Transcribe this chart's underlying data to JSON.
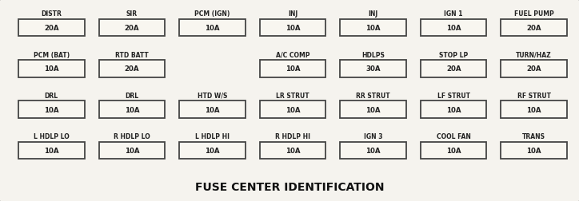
{
  "title": "FUSE CENTER IDENTIFICATION",
  "outer_bg": "#c8c4b8",
  "inner_bg": "#f5f3ee",
  "box_fill": "#f8f6f0",
  "box_edge": "#444444",
  "text_color": "#222222",
  "title_color": "#111111",
  "rows": [
    [
      {
        "label": "DISTR",
        "value": "20A"
      },
      {
        "label": "SIR",
        "value": "20A"
      },
      {
        "label": "PCM (IGN)",
        "value": "10A"
      },
      {
        "label": "INJ",
        "value": "10A"
      },
      {
        "label": "INJ",
        "value": "10A"
      },
      {
        "label": "IGN 1",
        "value": "10A"
      },
      {
        "label": "FUEL PUMP",
        "value": "20A"
      }
    ],
    [
      {
        "label": "PCM (BAT)",
        "value": "10A"
      },
      {
        "label": "RTD BATT",
        "value": "20A"
      },
      {
        "label": "",
        "value": ""
      },
      {
        "label": "A/C COMP",
        "value": "10A"
      },
      {
        "label": "HDLPS",
        "value": "30A"
      },
      {
        "label": "STOP LP",
        "value": "20A"
      },
      {
        "label": "TURN/HAZ",
        "value": "20A"
      }
    ],
    [
      {
        "label": "DRL",
        "value": "10A"
      },
      {
        "label": "DRL",
        "value": "10A"
      },
      {
        "label": "HTD W/S",
        "value": "10A"
      },
      {
        "label": "LR STRUT",
        "value": "10A"
      },
      {
        "label": "RR STRUT",
        "value": "10A"
      },
      {
        "label": "LF STRUT",
        "value": "10A"
      },
      {
        "label": "RF STRUT",
        "value": "10A"
      }
    ],
    [
      {
        "label": "L HDLP LO",
        "value": "10A"
      },
      {
        "label": "R HDLP LO",
        "value": "10A"
      },
      {
        "label": "L HDLP HI",
        "value": "10A"
      },
      {
        "label": "R HDLP HI",
        "value": "10A"
      },
      {
        "label": "IGN 3",
        "value": "10A"
      },
      {
        "label": "COOL FAN",
        "value": "10A"
      },
      {
        "label": "TRANS",
        "value": "10A"
      }
    ]
  ],
  "figsize": [
    7.24,
    2.53
  ],
  "dpi": 100
}
